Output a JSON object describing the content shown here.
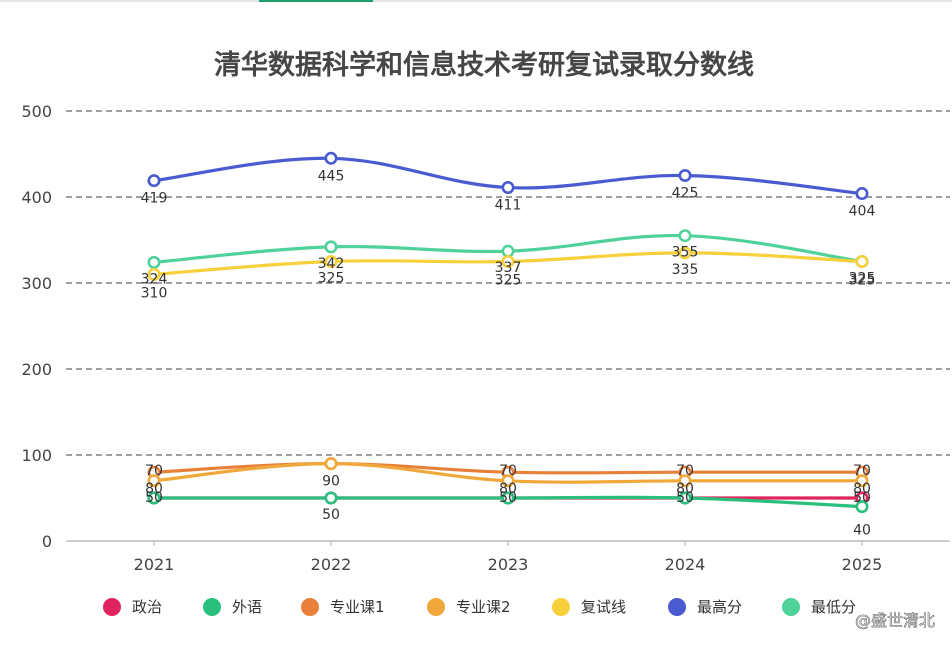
{
  "chart_data": {
    "type": "line",
    "title": "清华数据科学和信息技术考研复试录取分数线",
    "xlabel": "",
    "ylabel": "",
    "categories": [
      "2021",
      "2022",
      "2023",
      "2024",
      "2025"
    ],
    "ylim": [
      0,
      500
    ],
    "yticks": [
      0,
      100,
      200,
      300,
      400,
      500
    ],
    "grid": true,
    "legend_position": "bottom",
    "series": [
      {
        "name": "政治",
        "color": "#e0245e",
        "values": [
          50,
          50,
          50,
          50,
          50
        ],
        "labels_shown": [
          false,
          false,
          false,
          false,
          true
        ]
      },
      {
        "name": "外语",
        "color": "#2bbf7e",
        "values": [
          50,
          50,
          50,
          50,
          40
        ],
        "labels_shown": [
          true,
          true,
          true,
          true,
          true
        ]
      },
      {
        "name": "专业课1",
        "color": "#e8803a",
        "values": [
          80,
          90,
          80,
          80,
          80
        ],
        "labels_shown": [
          true,
          false,
          true,
          true,
          true
        ]
      },
      {
        "name": "专业课2",
        "color": "#f0a83a",
        "values": [
          70,
          90,
          70,
          70,
          70
        ],
        "labels_shown": [
          true,
          true,
          true,
          true,
          true
        ]
      },
      {
        "name": "复试线",
        "color": "#f7d03c",
        "values": [
          310,
          325,
          325,
          335,
          325
        ],
        "labels_shown": [
          true,
          true,
          true,
          true,
          true
        ]
      },
      {
        "name": "最高分",
        "color": "#4a5bd1",
        "values": [
          419,
          445,
          411,
          425,
          404
        ],
        "labels_shown": [
          true,
          true,
          true,
          true,
          true
        ]
      },
      {
        "name": "最低分",
        "color": "#4fd19a",
        "values": [
          324,
          342,
          337,
          355,
          325
        ],
        "labels_shown": [
          true,
          true,
          true,
          true,
          true
        ]
      }
    ]
  },
  "watermark": "@盛世清北"
}
